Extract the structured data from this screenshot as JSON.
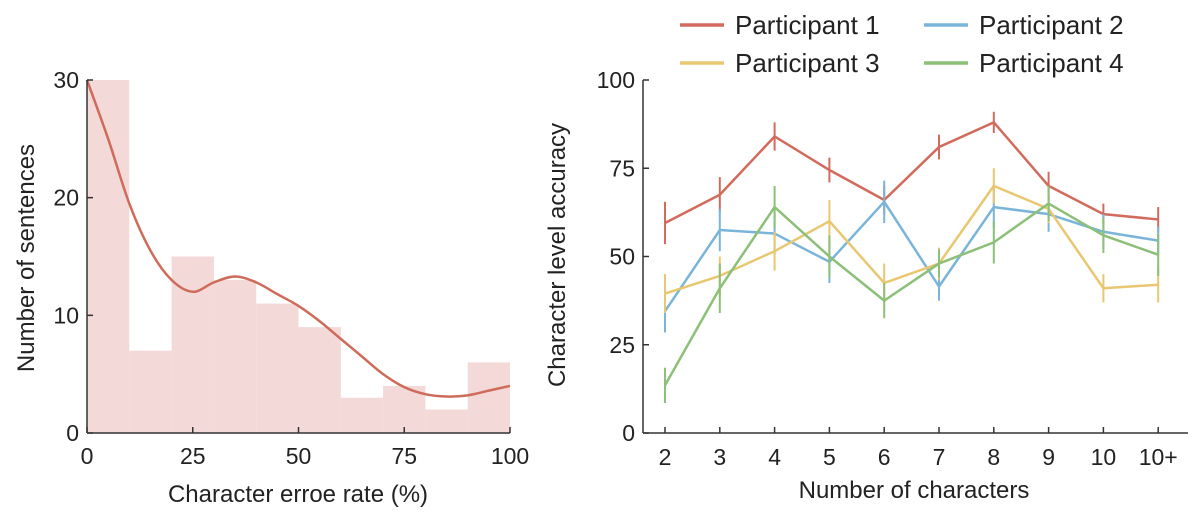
{
  "chart_data": [
    {
      "type": "bar",
      "subtype": "histogram-with-density",
      "xlabel": "Character erroe rate (%)",
      "ylabel": "Number of sentences",
      "xlim": [
        0,
        100
      ],
      "ylim": [
        0,
        30
      ],
      "xticks": [
        "0",
        "25",
        "50",
        "75",
        "100"
      ],
      "yticks": [
        "0",
        "10",
        "20",
        "30"
      ],
      "bins": [
        {
          "from": 0,
          "to": 10,
          "count": 30
        },
        {
          "from": 10,
          "to": 20,
          "count": 7
        },
        {
          "from": 20,
          "to": 30,
          "count": 15
        },
        {
          "from": 30,
          "to": 40,
          "count": 13
        },
        {
          "from": 40,
          "to": 50,
          "count": 11
        },
        {
          "from": 50,
          "to": 60,
          "count": 9
        },
        {
          "from": 60,
          "to": 70,
          "count": 3
        },
        {
          "from": 70,
          "to": 80,
          "count": 4
        },
        {
          "from": 80,
          "to": 90,
          "count": 2
        },
        {
          "from": 90,
          "to": 100,
          "count": 6
        }
      ],
      "density_curve": {
        "x": [
          0,
          5,
          10,
          15,
          20,
          25,
          30,
          35,
          40,
          45,
          50,
          55,
          60,
          65,
          70,
          75,
          80,
          85,
          90,
          95,
          100
        ],
        "y": [
          30,
          25,
          19.5,
          15.5,
          13,
          12,
          12.8,
          13.3,
          12.8,
          11.8,
          10.8,
          9.5,
          8,
          6.5,
          5,
          3.9,
          3.3,
          3.1,
          3.2,
          3.6,
          4
        ]
      },
      "colors": {
        "bar": "#f3d9d7",
        "curve": "#cf6b5a"
      },
      "grid": false
    },
    {
      "type": "line",
      "xlabel": "Number of characters",
      "ylabel": "Character level accuracy",
      "categories": [
        "2",
        "3",
        "4",
        "5",
        "6",
        "7",
        "8",
        "9",
        "10",
        "10+"
      ],
      "ylim": [
        0,
        100
      ],
      "yticks": [
        "0",
        "25",
        "50",
        "75",
        "100"
      ],
      "legend_position": "top",
      "grid": false,
      "series": [
        {
          "name": "Participant 1",
          "color": "#d26b5d",
          "values": [
            59.5,
            67.5,
            84,
            74.5,
            66,
            81,
            88,
            70,
            62,
            60.5
          ],
          "errors": [
            6,
            5,
            4,
            3.5,
            4,
            3.5,
            3,
            4,
            3,
            3.5
          ]
        },
        {
          "name": "Participant 2",
          "color": "#7ab5d9",
          "values": [
            34.5,
            57.5,
            56.5,
            48.5,
            65.5,
            41.5,
            64,
            62,
            57,
            54.5
          ],
          "errors": [
            6,
            6,
            6,
            6,
            6,
            4,
            6,
            5,
            5,
            4
          ]
        },
        {
          "name": "Participant 3",
          "color": "#e8c770",
          "values": [
            39.5,
            44.5,
            51.5,
            60,
            42.5,
            48,
            70,
            63.5,
            41,
            42
          ],
          "errors": [
            5.5,
            5.5,
            5.5,
            6,
            5.5,
            4.5,
            5,
            4,
            4,
            5
          ]
        },
        {
          "name": "Participant 4",
          "color": "#8cbf78",
          "values": [
            13.5,
            41,
            64,
            50,
            37.5,
            48,
            54,
            65,
            56,
            50.5
          ],
          "errors": [
            5,
            7,
            6,
            6,
            5,
            4,
            6,
            5,
            5,
            6
          ]
        }
      ]
    }
  ]
}
